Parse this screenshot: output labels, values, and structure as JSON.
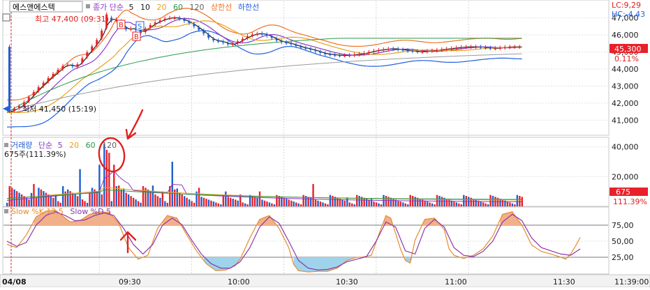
{
  "header": {
    "stock_name": "에스앤에스텍",
    "price_legend_title": "종가 단순",
    "ma_periods": [
      "5",
      "10",
      "20",
      "60",
      "120"
    ],
    "upper_limit_label": "상한선",
    "lower_limit_label": "하한선"
  },
  "right_badges": {
    "lc": "LC:9,29",
    "hc": "HC:-4,43",
    "last_price": "45,300",
    "change_pct": "0.11%",
    "last_volume": "675",
    "volume_pct": "111.39%"
  },
  "annotations": {
    "high": "최고 47,400 (09:31)",
    "low": "최저 41,450 (15:19)",
    "buy_marker": "B",
    "sell_marker": "S",
    "volume_readout": "675주(111.39%)"
  },
  "volume_panel": {
    "title": "거래량",
    "ma_title": "단순",
    "ma_periods": [
      "5",
      "20",
      "60",
      "120"
    ]
  },
  "stoch_panel": {
    "k_label": "Slow %K 12,5",
    "d_label": "Slow %D 5"
  },
  "colors": {
    "up": "#e8202a",
    "down": "#1e5fd0",
    "ma5": "#1a1a1a",
    "ma10": "#8a38c8",
    "ma20": "#e8a21a",
    "ma60": "#2a9a4a",
    "ma120": "#9a9a9a",
    "upper": "#f07020",
    "lower": "#2060e0",
    "stoch_k": "#e88a2a",
    "stoch_d": "#8a38a8",
    "annot": "#e02020"
  },
  "chart_data": [
    {
      "type": "candlestick",
      "ylim": [
        40200,
        47800
      ],
      "yticks": [
        "41,000",
        "42,000",
        "43,000",
        "44,000",
        "45,000",
        "46,000",
        "47,000"
      ],
      "ytick_values": [
        41000,
        42000,
        43000,
        44000,
        45000,
        46000,
        47000
      ],
      "close_path": [
        [
          0,
          41450
        ],
        [
          6,
          41900
        ],
        [
          12,
          42800
        ],
        [
          18,
          43600
        ],
        [
          24,
          44300
        ],
        [
          28,
          44100
        ],
        [
          32,
          44800
        ],
        [
          36,
          45500
        ],
        [
          38,
          45900
        ],
        [
          40,
          46600
        ],
        [
          41,
          47200
        ],
        [
          42,
          46800
        ],
        [
          45,
          46900
        ],
        [
          48,
          46300
        ],
        [
          52,
          46400
        ],
        [
          55,
          46100
        ],
        [
          58,
          46500
        ],
        [
          62,
          46800
        ],
        [
          66,
          47000
        ],
        [
          70,
          47000
        ],
        [
          75,
          46700
        ],
        [
          80,
          46200
        ],
        [
          84,
          45700
        ],
        [
          88,
          45600
        ],
        [
          92,
          45400
        ],
        [
          96,
          45700
        ],
        [
          100,
          46000
        ],
        [
          104,
          46100
        ],
        [
          108,
          45900
        ],
        [
          112,
          45600
        ],
        [
          116,
          45500
        ],
        [
          120,
          45300
        ],
        [
          126,
          45100
        ],
        [
          130,
          44900
        ],
        [
          136,
          44800
        ],
        [
          140,
          44800
        ],
        [
          146,
          44900
        ],
        [
          152,
          45100
        ],
        [
          158,
          45200
        ],
        [
          164,
          45100
        ],
        [
          170,
          45000
        ],
        [
          176,
          45100
        ],
        [
          182,
          45200
        ],
        [
          188,
          45300
        ],
        [
          194,
          45300
        ],
        [
          200,
          45200
        ],
        [
          206,
          45300
        ],
        [
          212,
          45300
        ]
      ],
      "high": "47,400",
      "low": "41,450",
      "last": "45,300"
    },
    {
      "type": "bar",
      "ylim": [
        0,
        45000
      ],
      "yticks": [
        "20,000",
        "40,000"
      ],
      "ytick_values": [
        20000,
        40000
      ],
      "spikes": [
        [
          10,
          9000
        ],
        [
          11,
          15000
        ],
        [
          12,
          6000
        ],
        [
          20,
          8000
        ],
        [
          24,
          10000
        ],
        [
          30,
          25000
        ],
        [
          34,
          9000
        ],
        [
          38,
          28000
        ],
        [
          40,
          42000
        ],
        [
          41,
          38000
        ],
        [
          42,
          36000
        ],
        [
          44,
          28000
        ],
        [
          46,
          14000
        ],
        [
          48,
          12000
        ],
        [
          60,
          14000
        ],
        [
          64,
          10000
        ],
        [
          68,
          30000
        ],
        [
          70,
          12000
        ],
        [
          78,
          10000
        ],
        [
          90,
          10000
        ],
        [
          96,
          8000
        ],
        [
          104,
          10000
        ],
        [
          126,
          15000
        ],
        [
          140,
          6000
        ],
        [
          150,
          5000
        ]
      ],
      "last": "675"
    },
    {
      "type": "line",
      "ylim": [
        0,
        100
      ],
      "yticks": [
        "25,00",
        "50,00",
        "75,00"
      ],
      "ytick_values": [
        25,
        50,
        75
      ],
      "series": [
        {
          "values": [
            [
              0,
              45
            ],
            [
              4,
              40
            ],
            [
              8,
              60
            ],
            [
              12,
              88
            ],
            [
              16,
              97
            ],
            [
              20,
              98
            ],
            [
              24,
              86
            ],
            [
              26,
              80
            ],
            [
              30,
              82
            ],
            [
              34,
              92
            ],
            [
              38,
              96
            ],
            [
              42,
              95
            ],
            [
              46,
              78
            ],
            [
              50,
              40
            ],
            [
              54,
              22
            ],
            [
              58,
              28
            ],
            [
              62,
              70
            ],
            [
              66,
              90
            ],
            [
              70,
              86
            ],
            [
              74,
              60
            ],
            [
              78,
              35
            ],
            [
              82,
              15
            ],
            [
              86,
              4
            ],
            [
              90,
              5
            ],
            [
              94,
              12
            ],
            [
              96,
              22
            ],
            [
              100,
              55
            ],
            [
              104,
              84
            ],
            [
              108,
              90
            ],
            [
              112,
              70
            ],
            [
              116,
              40
            ],
            [
              118,
              14
            ],
            [
              120,
              4
            ],
            [
              124,
              2
            ],
            [
              128,
              3
            ],
            [
              132,
              3
            ],
            [
              136,
              8
            ],
            [
              140,
              20
            ],
            [
              144,
              25
            ],
            [
              146,
              25
            ],
            [
              150,
              28
            ],
            [
              154,
              70
            ],
            [
              156,
              90
            ],
            [
              158,
              86
            ],
            [
              160,
              62
            ],
            [
              162,
              38
            ],
            [
              164,
              20
            ],
            [
              166,
              16
            ],
            [
              168,
              52
            ],
            [
              172,
              84
            ],
            [
              176,
              86
            ],
            [
              180,
              68
            ],
            [
              182,
              38
            ],
            [
              184,
              28
            ],
            [
              188,
              23
            ],
            [
              192,
              28
            ],
            [
              196,
              38
            ],
            [
              200,
              58
            ],
            [
              204,
              92
            ],
            [
              208,
              96
            ],
            [
              212,
              75
            ],
            [
              216,
              44
            ],
            [
              220,
              34
            ],
            [
              224,
              30
            ],
            [
              228,
              25
            ],
            [
              230,
              22
            ],
            [
              232,
              30
            ],
            [
              234,
              42
            ],
            [
              236,
              56
            ]
          ]
        },
        {
          "values": [
            [
              0,
              50
            ],
            [
              4,
              42
            ],
            [
              8,
              48
            ],
            [
              12,
              75
            ],
            [
              16,
              90
            ],
            [
              20,
              96
            ],
            [
              24,
              90
            ],
            [
              28,
              82
            ],
            [
              32,
              83
            ],
            [
              36,
              90
            ],
            [
              40,
              94
            ],
            [
              44,
              90
            ],
            [
              48,
              70
            ],
            [
              52,
              45
            ],
            [
              56,
              30
            ],
            [
              60,
              45
            ],
            [
              64,
              75
            ],
            [
              68,
              86
            ],
            [
              72,
              76
            ],
            [
              76,
              52
            ],
            [
              80,
              30
            ],
            [
              84,
              15
            ],
            [
              88,
              8
            ],
            [
              92,
              8
            ],
            [
              96,
              18
            ],
            [
              100,
              40
            ],
            [
              104,
              72
            ],
            [
              108,
              88
            ],
            [
              112,
              78
            ],
            [
              116,
              50
            ],
            [
              120,
              20
            ],
            [
              124,
              8
            ],
            [
              128,
              5
            ],
            [
              132,
              6
            ],
            [
              136,
              10
            ],
            [
              140,
              18
            ],
            [
              144,
              22
            ],
            [
              148,
              26
            ],
            [
              152,
              50
            ],
            [
              156,
              80
            ],
            [
              160,
              72
            ],
            [
              164,
              35
            ],
            [
              168,
              30
            ],
            [
              172,
              70
            ],
            [
              176,
              84
            ],
            [
              180,
              72
            ],
            [
              184,
              40
            ],
            [
              188,
              28
            ],
            [
              192,
              26
            ],
            [
              196,
              34
            ],
            [
              200,
              50
            ],
            [
              204,
              80
            ],
            [
              208,
              92
            ],
            [
              212,
              82
            ],
            [
              216,
              55
            ],
            [
              220,
              40
            ],
            [
              224,
              35
            ],
            [
              228,
              30
            ],
            [
              232,
              28
            ],
            [
              236,
              38
            ]
          ]
        }
      ]
    }
  ],
  "x_axis": {
    "date_label": "04/08",
    "ticks": [
      "09:30",
      "10:00",
      "10:30",
      "11:00",
      "11:30"
    ],
    "end_label": "11:39:00"
  }
}
